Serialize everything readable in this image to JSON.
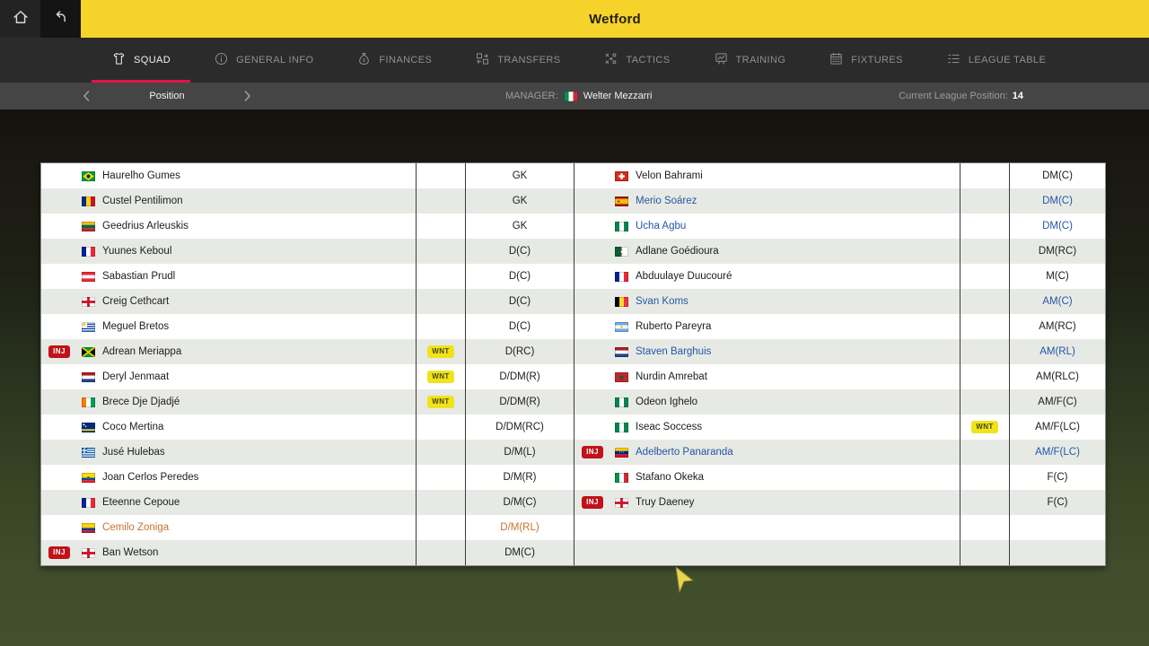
{
  "window": {
    "title": "Wetford"
  },
  "topbar": {
    "home_icon": "home-icon",
    "back_icon": "back-icon"
  },
  "nav": {
    "tabs": [
      {
        "label": "SQUAD",
        "icon": "shirt-icon",
        "active": true
      },
      {
        "label": "GENERAL INFO",
        "icon": "info-icon",
        "active": false
      },
      {
        "label": "FINANCES",
        "icon": "moneybag-icon",
        "active": false
      },
      {
        "label": "TRANSFERS",
        "icon": "transfers-icon",
        "active": false
      },
      {
        "label": "TACTICS",
        "icon": "tactics-icon",
        "active": false
      },
      {
        "label": "TRAINING",
        "icon": "training-icon",
        "active": false
      },
      {
        "label": "FIXTURES",
        "icon": "fixtures-icon",
        "active": false
      },
      {
        "label": "LEAGUE TABLE",
        "icon": "league-table-icon",
        "active": false
      }
    ]
  },
  "subheader": {
    "view_selector": {
      "label": "Position"
    },
    "manager_label": "MANAGER:",
    "manager_flag": "italy",
    "manager_name": "Welter Mezzarri",
    "league_position_label": "Current League Position:",
    "league_position_value": "14"
  },
  "badges": {
    "injured": "INJ",
    "wanted": "WNT"
  },
  "colors": {
    "accent_yellow": "#F5D32B",
    "active_tab_underline": "#E4114B",
    "inj_badge": "#C11119",
    "wnt_badge": "#EFE31C",
    "alt_row": "#E7EAE4",
    "blue_player": "#2456A8",
    "orange_player": "#C8732D",
    "cursor": "#E8D54F"
  },
  "squad_table": {
    "left_rows": [
      {
        "flag": "brazil",
        "name": "Haurelho Gumes",
        "position": "GK",
        "injured": false,
        "wanted": false,
        "name_color": "default"
      },
      {
        "flag": "romania",
        "name": "Custel Pentilimon",
        "position": "GK",
        "injured": false,
        "wanted": false,
        "name_color": "default"
      },
      {
        "flag": "lithuania",
        "name": "Geedrius Arleuskis",
        "position": "GK",
        "injured": false,
        "wanted": false,
        "name_color": "default"
      },
      {
        "flag": "france",
        "name": "Yuunes Keboul",
        "position": "D(C)",
        "injured": false,
        "wanted": false,
        "name_color": "default"
      },
      {
        "flag": "austria",
        "name": "Sabastian Prudl",
        "position": "D(C)",
        "injured": false,
        "wanted": false,
        "name_color": "default"
      },
      {
        "flag": "northern-ireland",
        "name": "Creig Cethcart",
        "position": "D(C)",
        "injured": false,
        "wanted": false,
        "name_color": "default"
      },
      {
        "flag": "uruguay",
        "name": "Meguel Bretos",
        "position": "D(C)",
        "injured": false,
        "wanted": false,
        "name_color": "default"
      },
      {
        "flag": "jamaica",
        "name": "Adrean Meriappa",
        "position": "D(RC)",
        "injured": true,
        "wanted": true,
        "name_color": "default"
      },
      {
        "flag": "netherlands",
        "name": "Deryl Jenmaat",
        "position": "D/DM(R)",
        "injured": false,
        "wanted": true,
        "name_color": "default"
      },
      {
        "flag": "ivory-coast",
        "name": "Brece Dje Djadjé",
        "position": "D/DM(R)",
        "injured": false,
        "wanted": true,
        "name_color": "default"
      },
      {
        "flag": "curacao",
        "name": "Coco Mertina",
        "position": "D/DM(RC)",
        "injured": false,
        "wanted": false,
        "name_color": "default"
      },
      {
        "flag": "greece",
        "name": "Jusé Hulebas",
        "position": "D/M(L)",
        "injured": false,
        "wanted": false,
        "name_color": "default"
      },
      {
        "flag": "ecuador",
        "name": "Joan Cerlos Peredes",
        "position": "D/M(R)",
        "injured": false,
        "wanted": false,
        "name_color": "default"
      },
      {
        "flag": "france",
        "name": "Eteenne Cepoue",
        "position": "D/M(C)",
        "injured": false,
        "wanted": false,
        "name_color": "default"
      },
      {
        "flag": "colombia",
        "name": "Cemilo Zoniga",
        "position": "D/M(RL)",
        "injured": false,
        "wanted": false,
        "name_color": "orange"
      },
      {
        "flag": "england",
        "name": "Ban Wetson",
        "position": "DM(C)",
        "injured": true,
        "wanted": false,
        "name_color": "default"
      }
    ],
    "right_rows": [
      {
        "flag": "switzerland",
        "name": "Velon Bahrami",
        "position": "DM(C)",
        "injured": false,
        "wanted": false,
        "name_color": "default"
      },
      {
        "flag": "spain",
        "name": "Merio Soárez",
        "position": "DM(C)",
        "injured": false,
        "wanted": false,
        "name_color": "blue"
      },
      {
        "flag": "nigeria",
        "name": "Ucha Agbu",
        "position": "DM(C)",
        "injured": false,
        "wanted": false,
        "name_color": "blue"
      },
      {
        "flag": "algeria",
        "name": "Adlane Goédioura",
        "position": "DM(RC)",
        "injured": false,
        "wanted": false,
        "name_color": "default"
      },
      {
        "flag": "france",
        "name": "Abduulaye Duucouré",
        "position": "M(C)",
        "injured": false,
        "wanted": false,
        "name_color": "default"
      },
      {
        "flag": "belgium",
        "name": "Svan Koms",
        "position": "AM(C)",
        "injured": false,
        "wanted": false,
        "name_color": "blue"
      },
      {
        "flag": "argentina",
        "name": "Ruberto Pareyra",
        "position": "AM(RC)",
        "injured": false,
        "wanted": false,
        "name_color": "default"
      },
      {
        "flag": "netherlands",
        "name": "Staven Barghuis",
        "position": "AM(RL)",
        "injured": false,
        "wanted": false,
        "name_color": "blue"
      },
      {
        "flag": "morocco",
        "name": "Nurdin Amrebat",
        "position": "AM(RLC)",
        "injured": false,
        "wanted": false,
        "name_color": "default"
      },
      {
        "flag": "nigeria",
        "name": "Odeon Ighelo",
        "position": "AM/F(C)",
        "injured": false,
        "wanted": false,
        "name_color": "default"
      },
      {
        "flag": "nigeria",
        "name": "Iseac Soccess",
        "position": "AM/F(LC)",
        "injured": false,
        "wanted": true,
        "name_color": "default"
      },
      {
        "flag": "venezuela",
        "name": "Adelberto Panaranda",
        "position": "AM/F(LC)",
        "injured": true,
        "wanted": false,
        "name_color": "blue"
      },
      {
        "flag": "italy",
        "name": "Stafano Okeka",
        "position": "F(C)",
        "injured": false,
        "wanted": false,
        "name_color": "default"
      },
      {
        "flag": "england",
        "name": "Truy Daeney",
        "position": "F(C)",
        "injured": true,
        "wanted": false,
        "name_color": "default"
      },
      null,
      null
    ]
  }
}
